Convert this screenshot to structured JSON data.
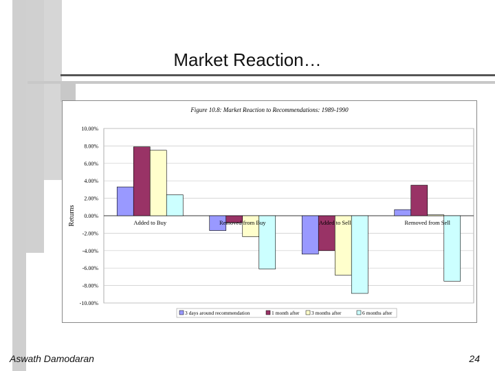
{
  "slide": {
    "title": "Market Reaction…",
    "author": "Aswath Damodaran",
    "page_number": "24"
  },
  "chart_data": {
    "type": "bar",
    "title": "Figure 10.8: Market Reaction to Recommendations: 1989-1990",
    "ylabel": "Returns",
    "xlabel": "",
    "ylim": [
      -10,
      10
    ],
    "yticks": [
      "10.00%",
      "8.00%",
      "6.00%",
      "4.00%",
      "2.00%",
      "0.00%",
      "-2.00%",
      "-4.00%",
      "-6.00%",
      "-8.00%",
      "-10.00%"
    ],
    "categories": [
      "Added to Buy",
      "Removed from Buy",
      "Added to Sell",
      "Removed from Sell"
    ],
    "series": [
      {
        "name": "3 days around recommendation",
        "color": "#9999ff",
        "values": [
          3.3,
          -1.7,
          -4.4,
          0.7
        ]
      },
      {
        "name": "1 month after",
        "color": "#993366",
        "values": [
          7.9,
          -0.8,
          -4.0,
          3.5
        ]
      },
      {
        "name": "3 months after",
        "color": "#ffffcc",
        "values": [
          7.5,
          -2.4,
          -6.8,
          0.1
        ]
      },
      {
        "name": "6 months after",
        "color": "#ccffff",
        "values": [
          2.4,
          -6.1,
          -8.9,
          -7.5
        ]
      }
    ],
    "grid": true,
    "legend_position": "bottom"
  }
}
